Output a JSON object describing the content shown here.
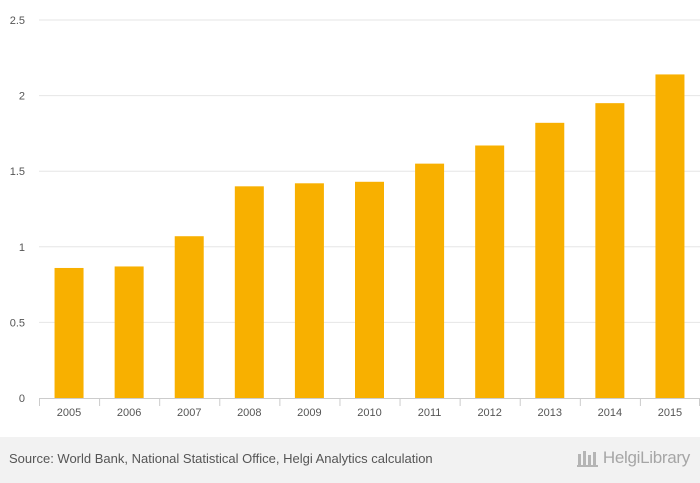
{
  "chart_data": {
    "type": "bar",
    "categories": [
      "2005",
      "2006",
      "2007",
      "2008",
      "2009",
      "2010",
      "2011",
      "2012",
      "2013",
      "2014",
      "2015"
    ],
    "values": [
      0.86,
      0.87,
      1.07,
      1.4,
      1.42,
      1.43,
      1.55,
      1.67,
      1.82,
      1.95,
      2.14
    ],
    "y_ticks": [
      "0",
      "0.5",
      "1",
      "1.5",
      "2",
      "2.5"
    ],
    "ylim": [
      0,
      2.5
    ],
    "title": "",
    "xlabel": "",
    "ylabel": "",
    "bar_color": "#f8b000",
    "grid_color": "#e6e6e6",
    "axis_color": "#cccccc"
  },
  "footer": {
    "source": "Source: World Bank, National Statistical Office, Helgi Analytics calculation",
    "logo_text": "HelgiLibrary"
  },
  "colors": {
    "footer_bg": "#f2f2f2",
    "text": "#555555"
  }
}
